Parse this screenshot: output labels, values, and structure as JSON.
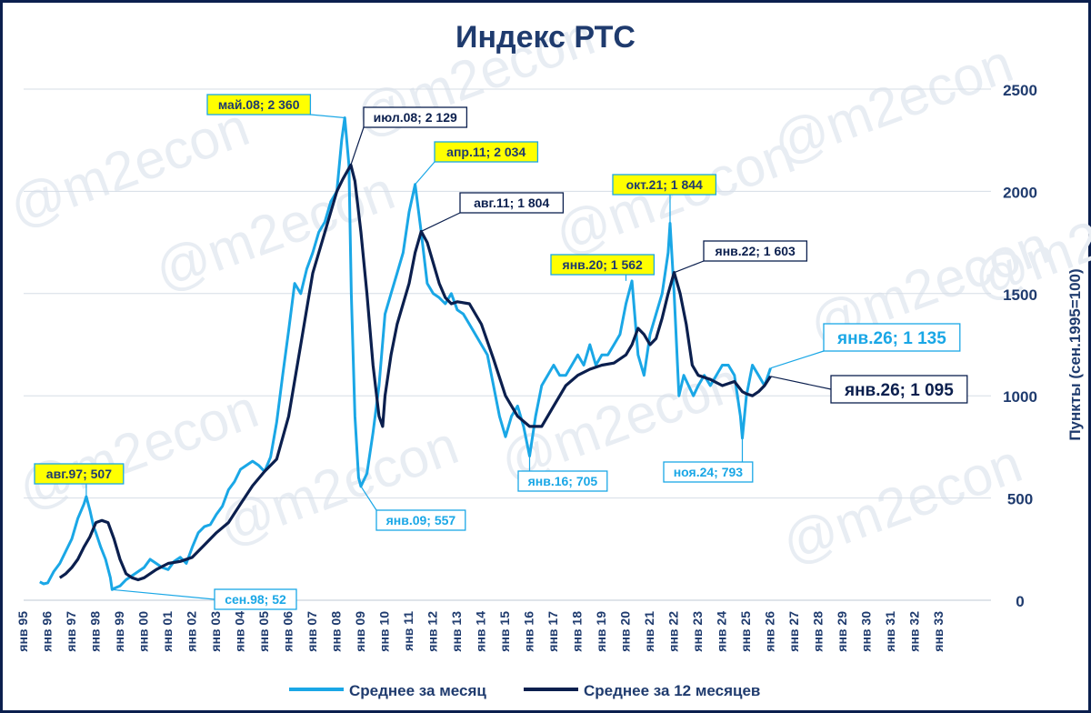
{
  "chart_data": {
    "type": "line",
    "title": "Индекс РТС",
    "ylabel": "Пункты (сен.1995=100)",
    "ylim": [
      0,
      2500
    ],
    "yticks": [
      0,
      500,
      1000,
      1500,
      2000,
      2500
    ],
    "grid": true,
    "legend_position": "bottom",
    "watermark": "@m2econ",
    "x_tick_labels": [
      "янв 95",
      "янв 96",
      "янв 97",
      "янв 98",
      "янв 99",
      "янв 00",
      "янв 01",
      "янв 02",
      "янв 03",
      "янв 04",
      "янв 05",
      "янв 06",
      "янв 07",
      "янв 08",
      "янв 09",
      "янв 10",
      "янв 11",
      "янв 12",
      "янв 13",
      "янв 14",
      "янв 15",
      "янв 16",
      "янв 17",
      "янв 18",
      "янв 19",
      "янв 20",
      "янв 21",
      "янв 22",
      "янв 23",
      "янв 24",
      "янв 25",
      "янв 26",
      "янв 27",
      "янв 28",
      "янв 29",
      "янв 30",
      "янв 31",
      "янв 32",
      "янв 33"
    ],
    "colors": {
      "monthly": "#1aa7e6",
      "avg12": "#0b1f4e",
      "highlight": "#ffff00",
      "title": "#1f3b6e"
    },
    "series": [
      {
        "name": "Среднее за месяц",
        "x": [
          1995.67,
          1995.83,
          1996.0,
          1996.25,
          1996.5,
          1996.75,
          1997.0,
          1997.25,
          1997.5,
          1997.6,
          1997.75,
          1997.9,
          1998.0,
          1998.2,
          1998.4,
          1998.6,
          1998.67,
          1998.8,
          1999.0,
          1999.25,
          1999.5,
          1999.75,
          2000.0,
          2000.25,
          2000.5,
          2000.75,
          2001.0,
          2001.25,
          2001.5,
          2001.75,
          2002.0,
          2002.25,
          2002.5,
          2002.75,
          2003.0,
          2003.25,
          2003.5,
          2003.75,
          2004.0,
          2004.25,
          2004.5,
          2004.75,
          2005.0,
          2005.25,
          2005.5,
          2005.75,
          2006.0,
          2006.25,
          2006.5,
          2006.75,
          2007.0,
          2007.25,
          2007.5,
          2007.75,
          2008.0,
          2008.2,
          2008.33,
          2008.5,
          2008.6,
          2008.75,
          2008.9,
          2009.0,
          2009.25,
          2009.5,
          2009.75,
          2010.0,
          2010.25,
          2010.5,
          2010.75,
          2011.0,
          2011.25,
          2011.5,
          2011.75,
          2012.0,
          2012.25,
          2012.5,
          2012.75,
          2013.0,
          2013.25,
          2013.5,
          2013.75,
          2014.0,
          2014.25,
          2014.5,
          2014.75,
          2015.0,
          2015.25,
          2015.5,
          2015.75,
          2016.0,
          2016.25,
          2016.5,
          2016.75,
          2017.0,
          2017.25,
          2017.5,
          2017.75,
          2018.0,
          2018.25,
          2018.5,
          2018.75,
          2019.0,
          2019.25,
          2019.5,
          2019.75,
          2020.0,
          2020.25,
          2020.5,
          2020.75,
          2021.0,
          2021.25,
          2021.5,
          2021.75,
          2021.83,
          2022.0,
          2022.2,
          2022.4,
          2022.6,
          2022.8,
          2023.0,
          2023.25,
          2023.5,
          2023.75,
          2024.0,
          2024.25,
          2024.5,
          2024.75,
          2024.83,
          2025.0,
          2025.25,
          2025.5,
          2025.75,
          2026.0
        ],
        "values": [
          90,
          80,
          85,
          140,
          180,
          240,
          300,
          400,
          470,
          507,
          440,
          360,
          330,
          260,
          200,
          110,
          52,
          60,
          70,
          100,
          120,
          140,
          160,
          200,
          180,
          160,
          150,
          190,
          210,
          180,
          260,
          330,
          360,
          370,
          420,
          460,
          540,
          580,
          640,
          660,
          680,
          660,
          630,
          700,
          870,
          1100,
          1320,
          1550,
          1500,
          1620,
          1700,
          1800,
          1850,
          1950,
          2000,
          2250,
          2360,
          2129,
          1500,
          900,
          600,
          557,
          620,
          820,
          1050,
          1400,
          1500,
          1600,
          1700,
          1900,
          2034,
          1800,
          1550,
          1500,
          1480,
          1450,
          1500,
          1420,
          1400,
          1350,
          1300,
          1250,
          1200,
          1050,
          900,
          800,
          900,
          950,
          850,
          705,
          900,
          1050,
          1100,
          1150,
          1100,
          1100,
          1150,
          1200,
          1150,
          1250,
          1150,
          1200,
          1200,
          1250,
          1300,
          1450,
          1562,
          1200,
          1100,
          1300,
          1400,
          1500,
          1700,
          1844,
          1500,
          1000,
          1100,
          1050,
          1000,
          1050,
          1100,
          1050,
          1100,
          1150,
          1150,
          1100,
          900,
          793,
          1000,
          1150,
          1100,
          1050,
          1135
        ]
      },
      {
        "name": "Среднее за 12 месяцев",
        "x": [
          1996.5,
          1996.75,
          1997.0,
          1997.25,
          1997.5,
          1997.75,
          1998.0,
          1998.25,
          1998.5,
          1998.75,
          1999.0,
          1999.25,
          1999.5,
          1999.75,
          2000.0,
          2000.5,
          2001.0,
          2001.5,
          2002.0,
          2002.5,
          2003.0,
          2003.5,
          2004.0,
          2004.5,
          2005.0,
          2005.5,
          2006.0,
          2006.5,
          2007.0,
          2007.5,
          2008.0,
          2008.25,
          2008.58,
          2008.75,
          2009.0,
          2009.25,
          2009.5,
          2009.75,
          2009.9,
          2010.0,
          2010.25,
          2010.5,
          2010.75,
          2011.0,
          2011.25,
          2011.5,
          2011.75,
          2012.0,
          2012.25,
          2012.5,
          2012.75,
          2013.0,
          2013.5,
          2014.0,
          2014.5,
          2015.0,
          2015.5,
          2016.0,
          2016.5,
          2017.0,
          2017.5,
          2018.0,
          2018.5,
          2019.0,
          2019.5,
          2020.0,
          2020.25,
          2020.5,
          2020.75,
          2021.0,
          2021.25,
          2021.5,
          2021.75,
          2022.0,
          2022.25,
          2022.5,
          2022.75,
          2023.0,
          2023.5,
          2024.0,
          2024.5,
          2024.83,
          2025.0,
          2025.25,
          2025.5,
          2025.75,
          2026.0
        ],
        "values": [
          110,
          130,
          160,
          200,
          260,
          310,
          380,
          390,
          380,
          300,
          200,
          130,
          110,
          100,
          110,
          150,
          180,
          190,
          210,
          270,
          330,
          380,
          470,
          560,
          630,
          690,
          900,
          1250,
          1600,
          1800,
          2000,
          2060,
          2129,
          2050,
          1800,
          1500,
          1150,
          900,
          850,
          1000,
          1200,
          1350,
          1450,
          1550,
          1700,
          1804,
          1750,
          1650,
          1550,
          1480,
          1450,
          1460,
          1450,
          1350,
          1180,
          1000,
          900,
          850,
          850,
          950,
          1050,
          1100,
          1130,
          1150,
          1160,
          1200,
          1250,
          1330,
          1300,
          1250,
          1280,
          1380,
          1500,
          1603,
          1500,
          1350,
          1150,
          1100,
          1080,
          1050,
          1070,
          1020,
          1010,
          1000,
          1020,
          1050,
          1095
        ]
      }
    ],
    "annotations": [
      {
        "series": "monthly",
        "label": "авг.97; 507",
        "x": 1997.6,
        "y": 507,
        "highlight": true
      },
      {
        "series": "monthly",
        "label": "сен.98; 52",
        "x": 1998.67,
        "y": 52,
        "highlight": false
      },
      {
        "series": "monthly",
        "label": "май.08; 2 360",
        "x": 2008.33,
        "y": 2360,
        "highlight": true
      },
      {
        "series": "avg12",
        "label": "июл.08; 2 129",
        "x": 2008.58,
        "y": 2129,
        "highlight": false
      },
      {
        "series": "monthly",
        "label": "янв.09; 557",
        "x": 2009.0,
        "y": 557,
        "highlight": false
      },
      {
        "series": "monthly",
        "label": "апр.11; 2 034",
        "x": 2011.25,
        "y": 2034,
        "highlight": true
      },
      {
        "series": "avg12",
        "label": "авг.11; 1 804",
        "x": 2011.5,
        "y": 1804,
        "highlight": false
      },
      {
        "series": "monthly",
        "label": "янв.16; 705",
        "x": 2016.0,
        "y": 705,
        "highlight": false
      },
      {
        "series": "monthly",
        "label": "янв.20; 1 562",
        "x": 2020.0,
        "y": 1562,
        "highlight": true
      },
      {
        "series": "monthly",
        "label": "окт.21; 1 844",
        "x": 2021.83,
        "y": 1844,
        "highlight": true
      },
      {
        "series": "avg12",
        "label": "янв.22; 1 603",
        "x": 2022.0,
        "y": 1603,
        "highlight": false
      },
      {
        "series": "monthly",
        "label": "ноя.24; 793",
        "x": 2024.83,
        "y": 793,
        "highlight": false
      },
      {
        "series": "monthly",
        "label": "янв.26; 1 135",
        "x": 2026.0,
        "y": 1135,
        "highlight": false,
        "big": true
      },
      {
        "series": "avg12",
        "label": "янв.26; 1 095",
        "x": 2026.0,
        "y": 1095,
        "highlight": false,
        "big": true
      }
    ]
  }
}
